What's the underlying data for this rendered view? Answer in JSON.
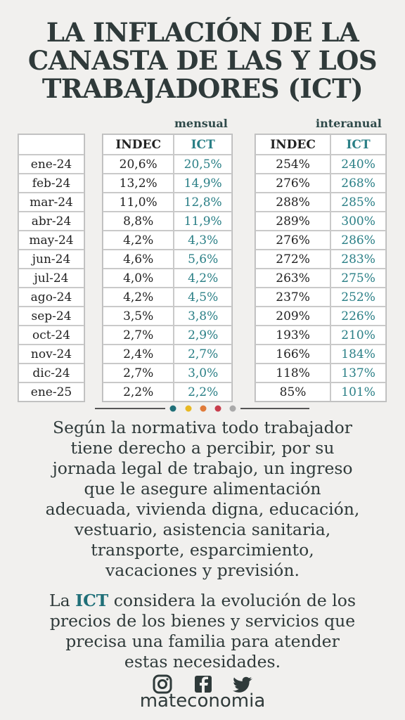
{
  "title": [
    "LA INFLACIÓN DE LA",
    "CANASTA DE LAS Y LOS",
    "TRABAJADORES (ICT)"
  ],
  "table": {
    "group_headers": [
      "mensual",
      "interanual"
    ],
    "columns": [
      "INDEC",
      "ICT",
      "INDEC",
      "ICT"
    ],
    "rows": [
      [
        "ene-24",
        "20,6%",
        "20,5%",
        "254%",
        "240%"
      ],
      [
        "feb-24",
        "13,2%",
        "14,9%",
        "276%",
        "268%"
      ],
      [
        "mar-24",
        "11,0%",
        "12,8%",
        "288%",
        "285%"
      ],
      [
        "abr-24",
        "8,8%",
        "11,9%",
        "289%",
        "300%"
      ],
      [
        "may-24",
        "4,2%",
        "4,3%",
        "276%",
        "286%"
      ],
      [
        "jun-24",
        "4,6%",
        "5,6%",
        "272%",
        "283%"
      ],
      [
        "jul-24",
        "4,0%",
        "4,2%",
        "263%",
        "275%"
      ],
      [
        "ago-24",
        "4,2%",
        "4,5%",
        "237%",
        "252%"
      ],
      [
        "sep-24",
        "3,5%",
        "3,8%",
        "209%",
        "226%"
      ],
      [
        "oct-24",
        "2,7%",
        "2,9%",
        "193%",
        "210%"
      ],
      [
        "nov-24",
        "2,4%",
        "2,7%",
        "166%",
        "184%"
      ],
      [
        "dic-24",
        "2,7%",
        "3,0%",
        "118%",
        "137%"
      ],
      [
        "ene-25",
        "2,2%",
        "2,2%",
        "85%",
        "101%"
      ]
    ]
  },
  "paragraph1": [
    "Según la normativa todo trabajador",
    "tiene derecho a percibir, por su",
    "jornada legal de trabajo, un ingreso",
    "que le asegure alimentación",
    "adecuada, vivienda digna, educación,",
    "vestuario, asistencia sanitaria,",
    "transporte, esparcimiento,",
    "vacaciones y previsión."
  ],
  "paragraph2": {
    "lead": "La",
    "highlight": "ICT",
    "rest": "considera la evolución de los",
    "lines": [
      "precios de los bienes y servicios que",
      "precisa una familia para atender",
      "estas necesidades."
    ]
  },
  "footer": "mateconomia"
}
